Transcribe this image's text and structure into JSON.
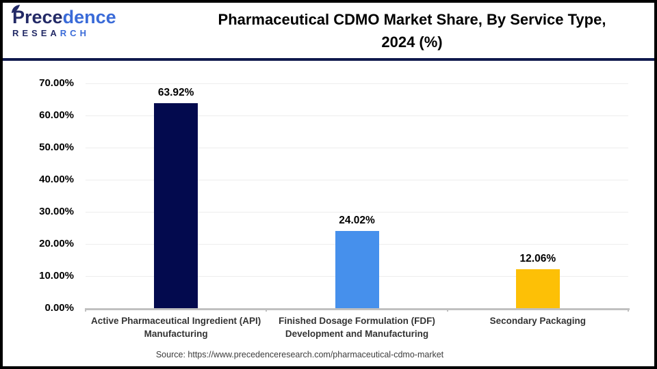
{
  "header": {
    "logo": {
      "name_navy": "Prece",
      "name_blue": "dence",
      "research_navy": "RESEA",
      "research_blue": "RCH"
    },
    "title_line1": "Pharmaceutical CDMO Market Share, By Service Type,",
    "title_line2": "2024 (%)"
  },
  "chart_data": {
    "type": "bar",
    "title": "Pharmaceutical CDMO Market Share, By Service Type, 2024 (%)",
    "categories": [
      "Active Pharmaceutical Ingredient (API) Manufacturing",
      "Finished Dosage Formulation (FDF) Development and Manufacturing",
      "Secondary Packaging"
    ],
    "values": [
      63.92,
      24.02,
      12.06
    ],
    "value_labels": [
      "63.92%",
      "24.02%",
      "12.06%"
    ],
    "bar_colors": [
      "#030a4e",
      "#4690ec",
      "#fdc006"
    ],
    "xlabel": "",
    "ylabel": "",
    "ylim": [
      0,
      70
    ],
    "ytick_step": 10,
    "ytick_labels": [
      "0.00%",
      "10.00%",
      "20.00%",
      "30.00%",
      "40.00%",
      "50.00%",
      "60.00%",
      "70.00%"
    ],
    "grid": true,
    "legend": "none"
  },
  "footer": {
    "source_text": "Source: https://www.precedenceresearch.com/pharmaceutical-cdmo-market"
  },
  "colors": {
    "bar_navy": "#030a4e",
    "bar_blue": "#4690ec",
    "bar_gold": "#fdc006",
    "divider_navy": "#101a4d",
    "gridline": "#ededed",
    "axis_gray": "#c0c0c0"
  }
}
